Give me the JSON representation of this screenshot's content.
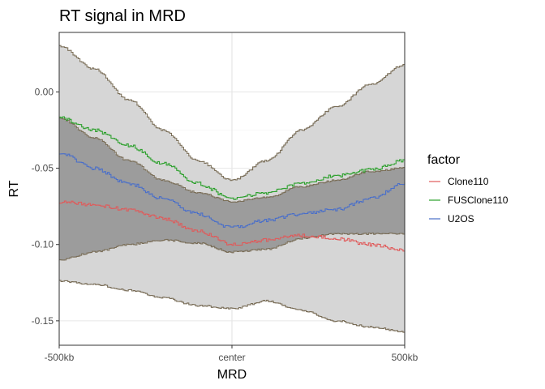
{
  "chart_data": {
    "type": "line",
    "title": "RT signal in MRD",
    "xlabel": "MRD",
    "ylabel": "RT",
    "x_ticks": [
      "-500kb",
      "center",
      "500kb"
    ],
    "y_ticks": [
      "0.00",
      "-0.05",
      "-0.10",
      "-0.15"
    ],
    "y_tick_values": [
      0.0,
      -0.05,
      -0.1,
      -0.15
    ],
    "xlim": [
      -500,
      500
    ],
    "ylim": [
      -0.166,
      0.039
    ],
    "x_units": "kb",
    "grid": true,
    "legend": {
      "title": "factor",
      "placement": "right"
    },
    "series": [
      {
        "name": "Clone110",
        "color": "#e05a5a",
        "x": [
          -500,
          -400,
          -300,
          -200,
          -100,
          0,
          100,
          200,
          300,
          400,
          500
        ],
        "y": [
          -0.072,
          -0.074,
          -0.077,
          -0.083,
          -0.091,
          -0.1,
          -0.097,
          -0.094,
          -0.096,
          -0.1,
          -0.104
        ],
        "band_inner": {
          "upper": [
            -0.017,
            -0.03,
            -0.045,
            -0.058,
            -0.066,
            -0.072,
            -0.069,
            -0.062,
            -0.058,
            -0.052,
            -0.05
          ],
          "lower": [
            -0.11,
            -0.105,
            -0.1,
            -0.097,
            -0.099,
            -0.105,
            -0.103,
            -0.096,
            -0.093,
            -0.093,
            -0.093
          ]
        },
        "band_outer": {
          "upper": [
            0.03,
            0.015,
            -0.005,
            -0.025,
            -0.045,
            -0.058,
            -0.045,
            -0.025,
            -0.01,
            0.005,
            0.018
          ],
          "lower": [
            -0.124,
            -0.126,
            -0.13,
            -0.135,
            -0.14,
            -0.142,
            -0.137,
            -0.143,
            -0.15,
            -0.154,
            -0.157
          ]
        }
      },
      {
        "name": "FUSClone110",
        "color": "#2ca02c",
        "x": [
          -500,
          -400,
          -300,
          -200,
          -100,
          0,
          100,
          200,
          300,
          400,
          500
        ],
        "y": [
          -0.017,
          -0.025,
          -0.035,
          -0.047,
          -0.06,
          -0.07,
          -0.066,
          -0.06,
          -0.055,
          -0.051,
          -0.045
        ],
        "band_inner": {
          "upper": [
            -0.017,
            -0.03,
            -0.045,
            -0.058,
            -0.066,
            -0.072,
            -0.069,
            -0.062,
            -0.058,
            -0.052,
            -0.05
          ],
          "lower": [
            -0.11,
            -0.105,
            -0.1,
            -0.097,
            -0.099,
            -0.105,
            -0.103,
            -0.096,
            -0.093,
            -0.093,
            -0.093
          ]
        },
        "band_outer": {
          "upper": [
            0.03,
            0.015,
            -0.005,
            -0.025,
            -0.045,
            -0.058,
            -0.045,
            -0.025,
            -0.01,
            0.005,
            0.018
          ],
          "lower": [
            -0.124,
            -0.126,
            -0.13,
            -0.135,
            -0.14,
            -0.142,
            -0.137,
            -0.143,
            -0.15,
            -0.154,
            -0.157
          ]
        }
      },
      {
        "name": "U2OS",
        "color": "#4a6fc9",
        "x": [
          -500,
          -400,
          -300,
          -200,
          -100,
          0,
          100,
          200,
          300,
          400,
          500
        ],
        "y": [
          -0.04,
          -0.05,
          -0.06,
          -0.07,
          -0.08,
          -0.089,
          -0.084,
          -0.08,
          -0.077,
          -0.07,
          -0.06
        ],
        "band_inner": {
          "upper": [
            -0.017,
            -0.03,
            -0.045,
            -0.058,
            -0.066,
            -0.072,
            -0.069,
            -0.062,
            -0.058,
            -0.052,
            -0.05
          ],
          "lower": [
            -0.11,
            -0.105,
            -0.1,
            -0.097,
            -0.099,
            -0.105,
            -0.103,
            -0.096,
            -0.093,
            -0.093,
            -0.093
          ]
        },
        "band_outer": {
          "upper": [
            0.03,
            0.015,
            -0.005,
            -0.025,
            -0.045,
            -0.058,
            -0.045,
            -0.025,
            -0.01,
            0.005,
            0.018
          ],
          "lower": [
            -0.124,
            -0.126,
            -0.13,
            -0.135,
            -0.14,
            -0.142,
            -0.137,
            -0.143,
            -0.15,
            -0.154,
            -0.157
          ]
        }
      }
    ],
    "band_colors": {
      "outer": "#d6d6d6",
      "inner": "#9c9c9c",
      "edge": "#7a6e58"
    }
  }
}
